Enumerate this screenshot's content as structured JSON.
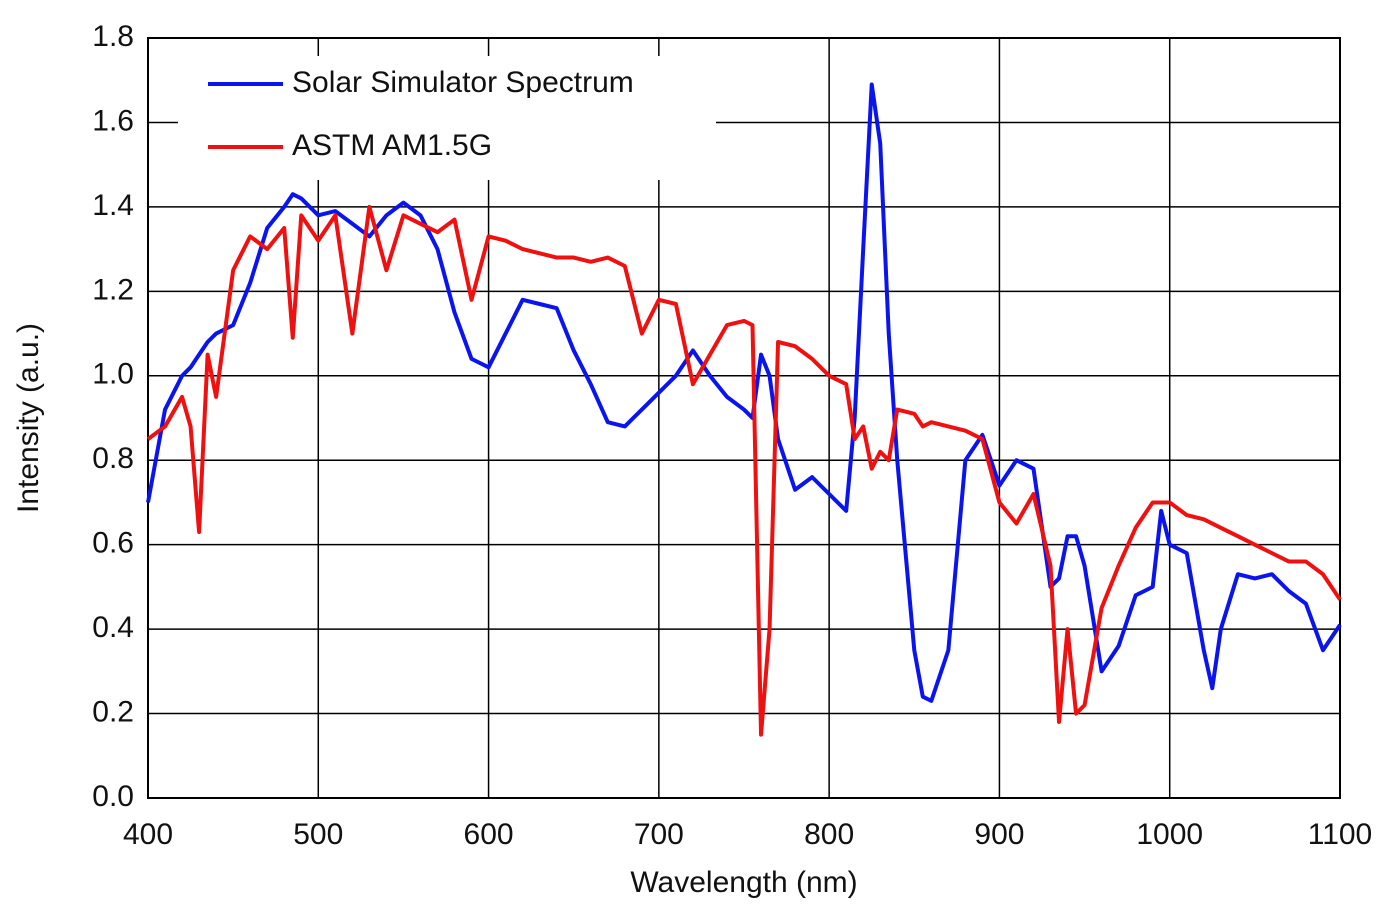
{
  "chart_data": {
    "type": "line",
    "x_label": "Wavelength (nm)",
    "y_label": "Intensity (a.u.)",
    "x": [
      400,
      410,
      420,
      425,
      430,
      435,
      440,
      450,
      460,
      470,
      480,
      485,
      490,
      500,
      510,
      520,
      530,
      540,
      550,
      560,
      570,
      580,
      590,
      600,
      610,
      620,
      630,
      640,
      650,
      660,
      670,
      680,
      690,
      700,
      710,
      720,
      730,
      740,
      750,
      755,
      760,
      765,
      770,
      780,
      790,
      800,
      810,
      815,
      820,
      825,
      830,
      835,
      840,
      850,
      855,
      860,
      870,
      880,
      890,
      900,
      910,
      920,
      930,
      935,
      940,
      945,
      950,
      960,
      970,
      980,
      990,
      995,
      1000,
      1010,
      1020,
      1025,
      1030,
      1040,
      1050,
      1060,
      1070,
      1080,
      1090,
      1100
    ],
    "series": [
      {
        "name": "Solar Simulator Spectrum",
        "color": "#0a14f0",
        "values": [
          0.7,
          0.92,
          1.0,
          1.02,
          1.05,
          1.08,
          1.1,
          1.12,
          1.22,
          1.35,
          1.4,
          1.43,
          1.42,
          1.38,
          1.39,
          1.36,
          1.33,
          1.38,
          1.41,
          1.38,
          1.3,
          1.15,
          1.04,
          1.02,
          1.1,
          1.18,
          1.17,
          1.16,
          1.06,
          0.98,
          0.89,
          0.88,
          0.92,
          0.96,
          1.0,
          1.06,
          1.0,
          0.95,
          0.92,
          0.9,
          1.05,
          1.0,
          0.85,
          0.73,
          0.76,
          0.72,
          0.68,
          0.9,
          1.3,
          1.69,
          1.55,
          1.1,
          0.8,
          0.35,
          0.24,
          0.23,
          0.35,
          0.8,
          0.86,
          0.74,
          0.8,
          0.78,
          0.5,
          0.52,
          0.62,
          0.62,
          0.55,
          0.3,
          0.36,
          0.48,
          0.5,
          0.68,
          0.6,
          0.58,
          0.35,
          0.26,
          0.4,
          0.53,
          0.52,
          0.53,
          0.49,
          0.46,
          0.35,
          0.41
        ]
      },
      {
        "name": "ASTM AM1.5G",
        "color": "#f01010",
        "values": [
          0.85,
          0.88,
          0.95,
          0.88,
          0.63,
          1.05,
          0.95,
          1.25,
          1.33,
          1.3,
          1.35,
          1.09,
          1.38,
          1.32,
          1.38,
          1.1,
          1.4,
          1.25,
          1.38,
          1.36,
          1.34,
          1.37,
          1.18,
          1.33,
          1.32,
          1.3,
          1.29,
          1.28,
          1.28,
          1.27,
          1.28,
          1.26,
          1.1,
          1.18,
          1.17,
          0.98,
          1.05,
          1.12,
          1.13,
          1.12,
          0.15,
          0.4,
          1.08,
          1.07,
          1.04,
          1.0,
          0.98,
          0.85,
          0.88,
          0.78,
          0.82,
          0.8,
          0.92,
          0.91,
          0.88,
          0.89,
          0.88,
          0.87,
          0.85,
          0.7,
          0.65,
          0.72,
          0.55,
          0.18,
          0.4,
          0.2,
          0.22,
          0.45,
          0.55,
          0.64,
          0.7,
          0.7,
          0.7,
          0.67,
          0.66,
          0.65,
          0.64,
          0.62,
          0.6,
          0.58,
          0.56,
          0.56,
          0.53,
          0.47
        ]
      }
    ],
    "xlim": [
      400,
      1100
    ],
    "xticks": [
      400,
      500,
      600,
      700,
      800,
      900,
      1000,
      1100
    ],
    "ylim": [
      0,
      1.8
    ],
    "yticks": [
      {
        "value": 0,
        "label": "0.0"
      },
      {
        "value": 0.2,
        "label": "0.2"
      },
      {
        "value": 0.4,
        "label": "0.4"
      },
      {
        "value": 0.6,
        "label": "0.6"
      },
      {
        "value": 0.8,
        "label": "0.8"
      },
      {
        "value": 1,
        "label": "1.0"
      },
      {
        "value": 1.2,
        "label": "1.2"
      },
      {
        "value": 1.4,
        "label": "1.4"
      },
      {
        "value": 1.6,
        "label": "1.6"
      },
      {
        "value": 1.8,
        "label": "1.8"
      }
    ],
    "grid": true,
    "legend": "upper left"
  }
}
